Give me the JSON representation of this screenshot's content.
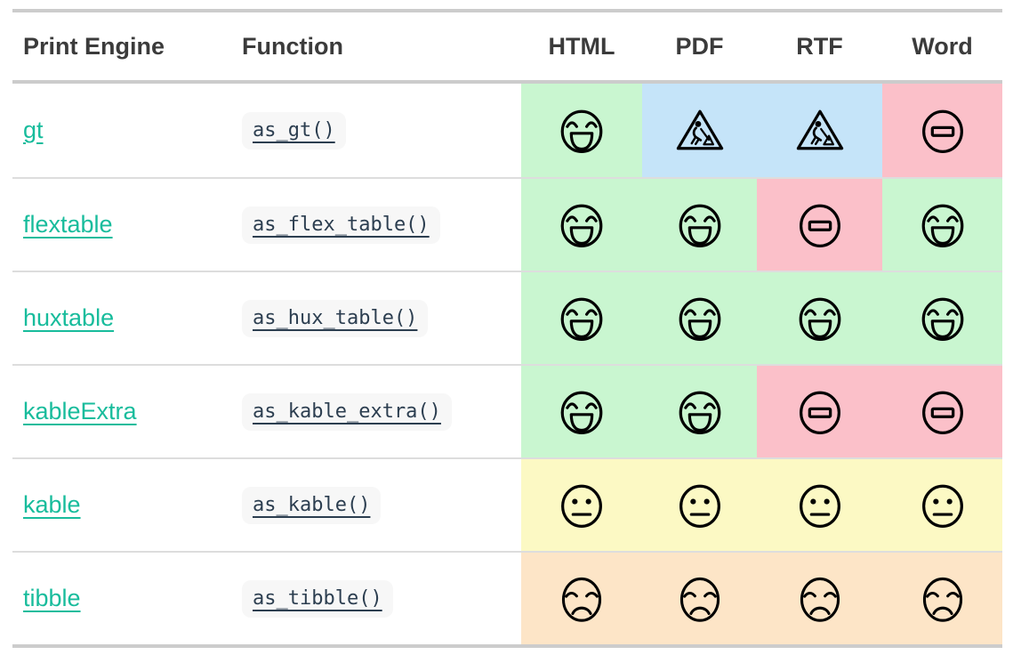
{
  "table": {
    "columns": [
      "Print Engine",
      "Function",
      "HTML",
      "PDF",
      "RTF",
      "Word"
    ],
    "rows": [
      {
        "engine": "gt",
        "function": "as_gt()",
        "support": [
          "great",
          "construction",
          "construction",
          "none"
        ]
      },
      {
        "engine": "flextable",
        "function": "as_flex_table()",
        "support": [
          "great",
          "great",
          "none",
          "great"
        ]
      },
      {
        "engine": "huxtable",
        "function": "as_hux_table()",
        "support": [
          "great",
          "great",
          "great",
          "great"
        ]
      },
      {
        "engine": "kableExtra",
        "function": "as_kable_extra()",
        "support": [
          "great",
          "great",
          "none",
          "none"
        ]
      },
      {
        "engine": "kable",
        "function": "as_kable()",
        "support": [
          "ok",
          "ok",
          "ok",
          "ok"
        ]
      },
      {
        "engine": "tibble",
        "function": "as_tibble()",
        "support": [
          "poor",
          "poor",
          "poor",
          "poor"
        ]
      }
    ],
    "legend": {
      "great": {
        "icon": "grinning-face-icon",
        "bg": "#c9f6d0"
      },
      "construction": {
        "icon": "construction-sign-icon",
        "bg": "#c5e4f9"
      },
      "none": {
        "icon": "no-entry-icon",
        "bg": "#fbc0c9"
      },
      "ok": {
        "icon": "neutral-face-icon",
        "bg": "#fcf9c4"
      },
      "poor": {
        "icon": "sad-face-icon",
        "bg": "#fde5c7"
      }
    },
    "colors": {
      "thick_border": "#cccccc",
      "row_separator": "#dddddd",
      "header_text": "#3b3b3b",
      "engine_link": "#18bc9c",
      "code_text": "#2c3e50",
      "code_background": "#f7f7f7",
      "page_background": "#ffffff",
      "icon_stroke": "#000000"
    }
  }
}
